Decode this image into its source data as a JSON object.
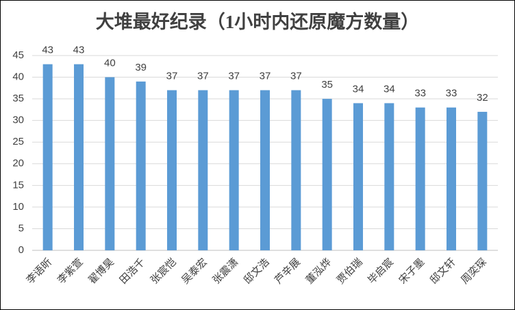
{
  "chart_data": {
    "type": "bar",
    "title": "大堆最好纪录（1小时内还原魔方数量）",
    "categories": [
      "李语昕",
      "李紫萱",
      "翟博昊",
      "田浩千",
      "张宸恺",
      "吴泰宏",
      "张震潇",
      "邸文浩",
      "芦辛展",
      "董泓烨",
      "贾伯瑞",
      "毕启宸",
      "宋子墨",
      "邸文轩",
      "周奕琛"
    ],
    "values": [
      43,
      43,
      40,
      39,
      37,
      37,
      37,
      37,
      37,
      35,
      34,
      34,
      33,
      33,
      32
    ],
    "color": "#5b9bd5",
    "ylim": [
      0,
      45
    ],
    "yticks": [
      0,
      5,
      10,
      15,
      20,
      25,
      30,
      35,
      40,
      45
    ],
    "grid": true
  }
}
